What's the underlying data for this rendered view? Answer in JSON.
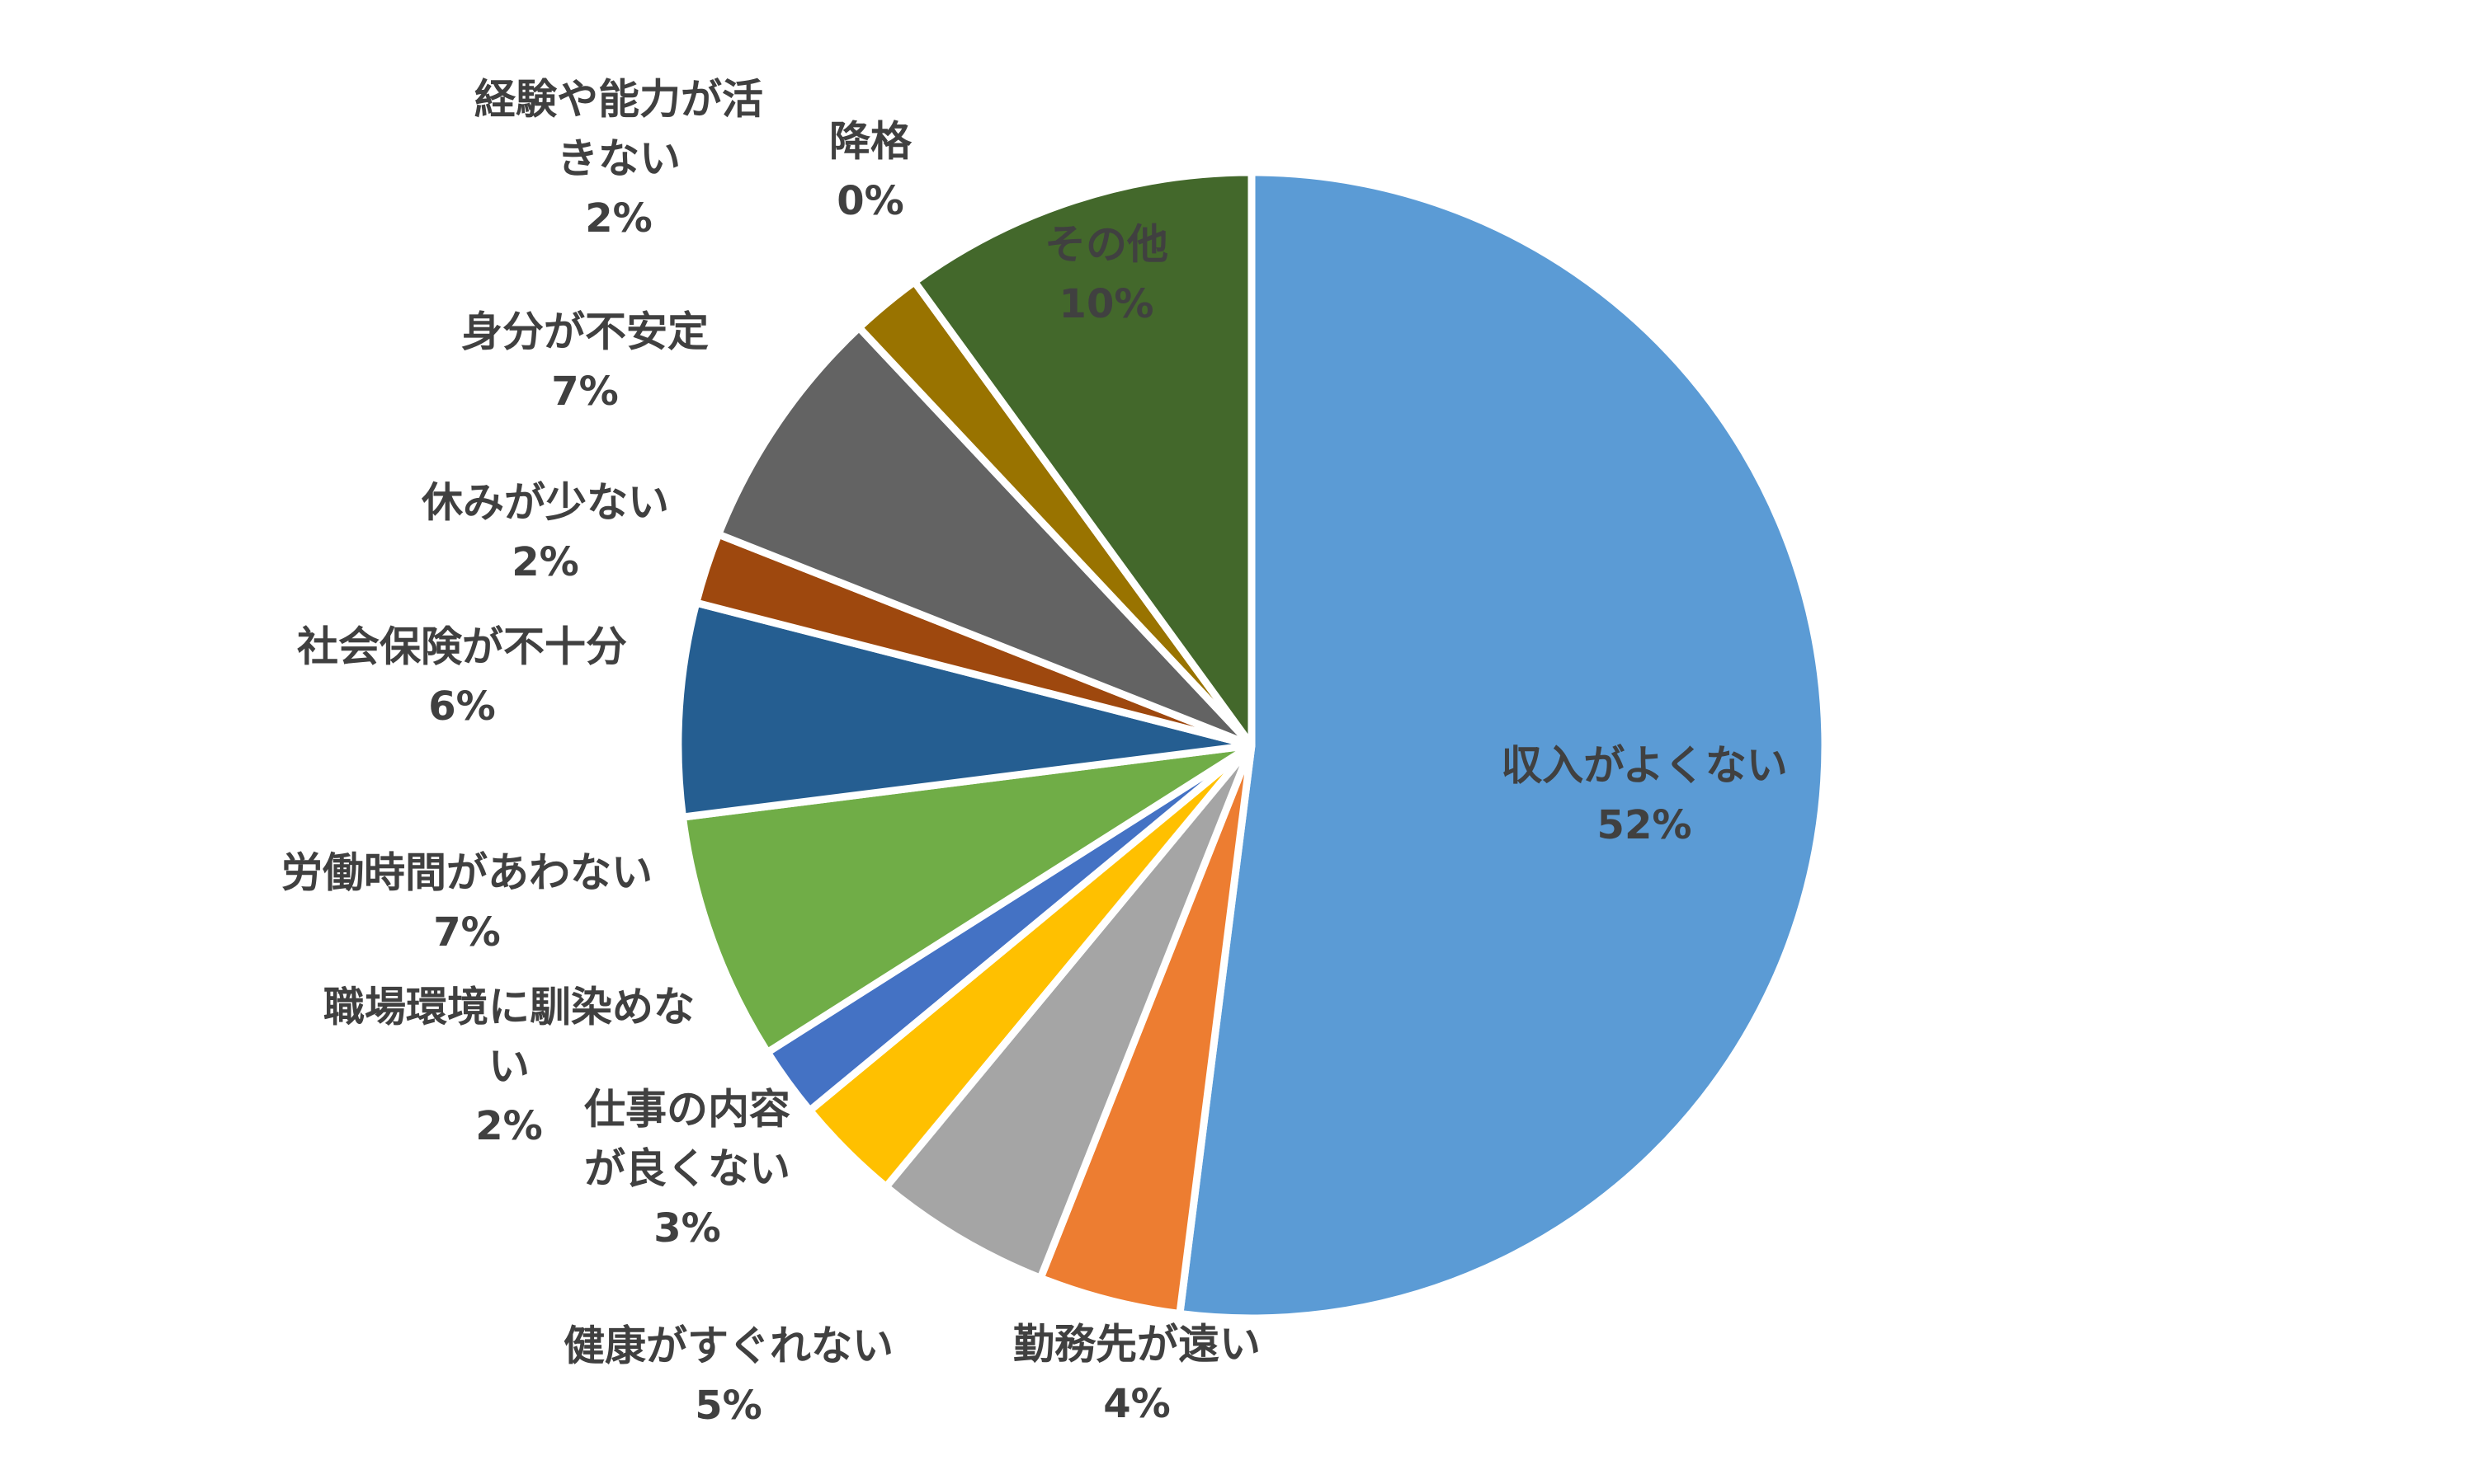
{
  "chart_data": {
    "type": "pie",
    "start_angle_deg": 0,
    "direction": "clockwise",
    "slices": [
      {
        "name": "収入がよくない",
        "label_lines": [
          "収入がよくない"
        ],
        "value": 52,
        "label": "52%",
        "color": "#5B9BD5"
      },
      {
        "name": "勤務先が遠い",
        "label_lines": [
          "勤務先が遠い"
        ],
        "value": 4,
        "label": "4%",
        "color": "#ED7D31"
      },
      {
        "name": "健康がすぐれない",
        "label_lines": [
          "健康がすぐれない"
        ],
        "value": 5,
        "label": "5%",
        "color": "#A5A5A5"
      },
      {
        "name": "仕事の内容が良くない",
        "label_lines": [
          "仕事の内容",
          "が良くない"
        ],
        "value": 3,
        "label": "3%",
        "color": "#FFC000"
      },
      {
        "name": "職場環境に馴染めない",
        "label_lines": [
          "職場環境に馴染めな",
          "い"
        ],
        "value": 2,
        "label": "2%",
        "color": "#4472C4"
      },
      {
        "name": "労働時間があわない",
        "label_lines": [
          "労働時間があわない"
        ],
        "value": 7,
        "label": "7%",
        "color": "#70AD47"
      },
      {
        "name": "社会保険が不十分",
        "label_lines": [
          "社会保険が不十分"
        ],
        "value": 6,
        "label": "6%",
        "color": "#255E91"
      },
      {
        "name": "休みが少ない",
        "label_lines": [
          "休みが少ない"
        ],
        "value": 2,
        "label": "2%",
        "color": "#9E480E"
      },
      {
        "name": "身分が不安定",
        "label_lines": [
          "身分が不安定"
        ],
        "value": 7,
        "label": "7%",
        "color": "#636363"
      },
      {
        "name": "経験や能力が活きない",
        "label_lines": [
          "経験や能力が活",
          "きない"
        ],
        "value": 2,
        "label": "2%",
        "color": "#997300"
      },
      {
        "name": "降格",
        "label_lines": [
          "降格"
        ],
        "value": 0,
        "label": "0%",
        "color": "#264478"
      },
      {
        "name": "その他",
        "label_lines": [
          "その他"
        ],
        "value": 10,
        "label": "10%",
        "color": "#43682B"
      }
    ]
  }
}
